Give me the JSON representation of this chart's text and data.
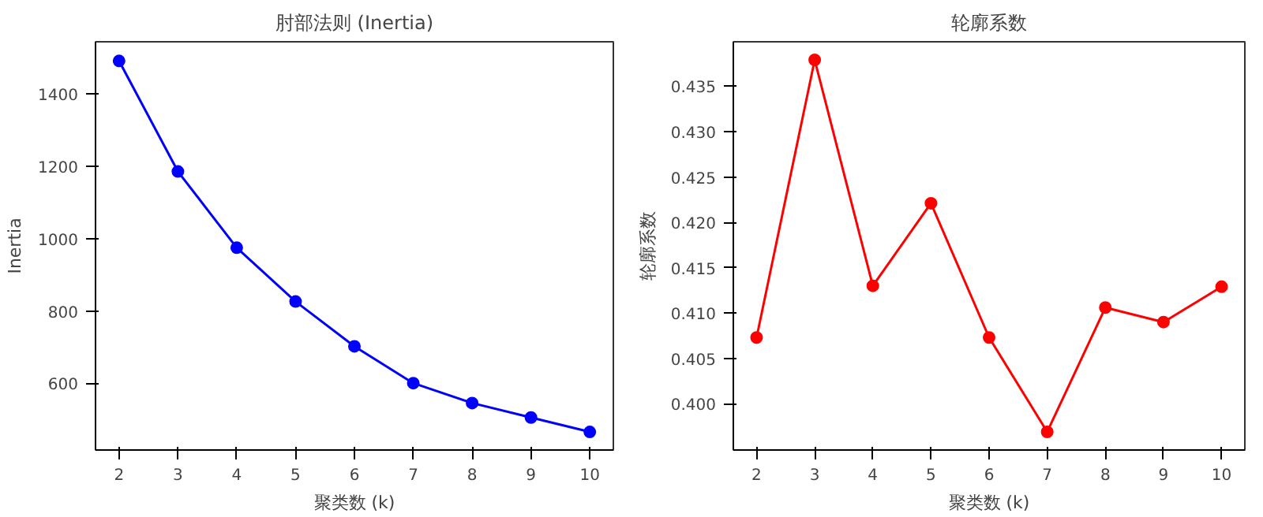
{
  "chart_data": [
    {
      "type": "line",
      "title": "肘部法则 (Inertia)",
      "xlabel": "聚类数 (k)",
      "ylabel": "Inertia",
      "x": [
        2,
        3,
        4,
        5,
        6,
        7,
        8,
        9,
        10
      ],
      "series": [
        {
          "color": "#0000ff",
          "values": [
            1492,
            1186,
            975,
            826,
            702,
            600,
            545,
            505,
            465
          ]
        }
      ],
      "xlim": [
        1.6,
        10.4
      ],
      "xticks": [
        2,
        3,
        4,
        5,
        6,
        7,
        8,
        9,
        10
      ],
      "ylim": [
        415,
        1545
      ],
      "yticks": [
        600,
        800,
        1000,
        1200,
        1400
      ],
      "grid": false,
      "marker": "circle",
      "line_style": "solid"
    },
    {
      "type": "line",
      "title": "轮廓系数",
      "xlabel": "聚类数 (k)",
      "ylabel": "轮廓系数",
      "x": [
        2,
        3,
        4,
        5,
        6,
        7,
        8,
        9,
        10
      ],
      "series": [
        {
          "color": "#ff0000",
          "values": [
            0.4073,
            0.4379,
            0.413,
            0.4221,
            0.4073,
            0.3969,
            0.4106,
            0.409,
            0.4129
          ]
        }
      ],
      "xlim": [
        1.6,
        10.4
      ],
      "xticks": [
        2,
        3,
        4,
        5,
        6,
        7,
        8,
        9,
        10
      ],
      "ylim": [
        0.3949,
        0.4399
      ],
      "yticks": [
        {
          "value": 0.4,
          "label": "0.400"
        },
        {
          "value": 0.405,
          "label": "0.405"
        },
        {
          "value": 0.41,
          "label": "0.410"
        },
        {
          "value": 0.415,
          "label": "0.415"
        },
        {
          "value": 0.42,
          "label": "0.420"
        },
        {
          "value": 0.425,
          "label": "0.425"
        },
        {
          "value": 0.43,
          "label": "0.430"
        },
        {
          "value": 0.435,
          "label": "0.435"
        }
      ],
      "grid": false,
      "marker": "circle",
      "line_style": "solid"
    }
  ]
}
